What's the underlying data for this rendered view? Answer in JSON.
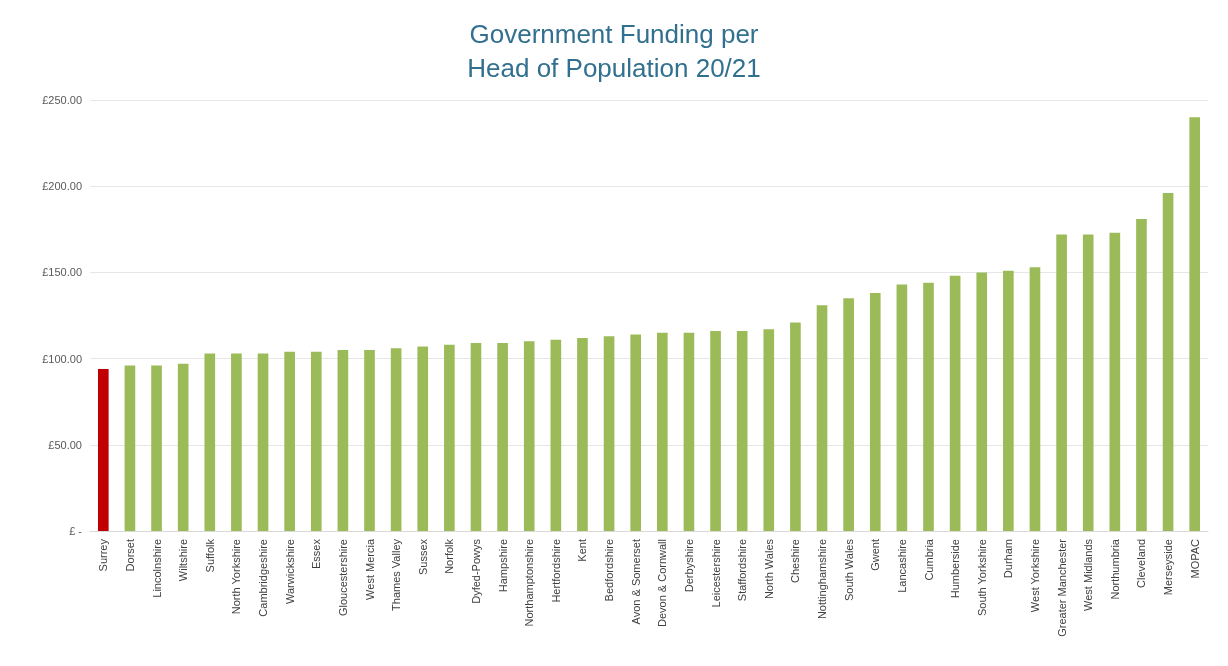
{
  "chart_data": {
    "type": "bar",
    "title": "Government Funding per\nHead of Population 20/21",
    "categories": [
      "Surrey",
      "Dorset",
      "Lincolnshire",
      "Wiltshire",
      "Suffolk",
      "North Yorkshire",
      "Cambridgeshire",
      "Warwickshire",
      "Essex",
      "Gloucestershire",
      "West Mercia",
      "Thames Valley",
      "Sussex",
      "Norfolk",
      "Dyfed-Powys",
      "Hampshire",
      "Northamptonshire",
      "Hertfordshire",
      "Kent",
      "Bedfordshire",
      "Avon & Somerset",
      "Devon & Cornwall",
      "Derbyshire",
      "Leicestershire",
      "Staffordshire",
      "North Wales",
      "Cheshire",
      "Nottinghamshire",
      "South Wales",
      "Gwent",
      "Lancashire",
      "Cumbria",
      "Humberside",
      "South Yorkshire",
      "Durham",
      "West Yorkshire",
      "Greater Manchester",
      "West Midlands",
      "Northumbria",
      "Cleveland",
      "Merseyside",
      "MOPAC"
    ],
    "values": [
      94,
      96,
      96,
      97,
      103,
      103,
      103,
      104,
      104,
      105,
      105,
      106,
      107,
      108,
      109,
      109,
      110,
      111,
      112,
      113,
      114,
      115,
      115,
      116,
      116,
      117,
      121,
      131,
      135,
      138,
      143,
      144,
      148,
      150,
      151,
      153,
      172,
      172,
      173,
      181,
      196,
      240
    ],
    "colors": [
      "#c00000",
      "#9bbb59",
      "#9bbb59",
      "#9bbb59",
      "#9bbb59",
      "#9bbb59",
      "#9bbb59",
      "#9bbb59",
      "#9bbb59",
      "#9bbb59",
      "#9bbb59",
      "#9bbb59",
      "#9bbb59",
      "#9bbb59",
      "#9bbb59",
      "#9bbb59",
      "#9bbb59",
      "#9bbb59",
      "#9bbb59",
      "#9bbb59",
      "#9bbb59",
      "#9bbb59",
      "#9bbb59",
      "#9bbb59",
      "#9bbb59",
      "#9bbb59",
      "#9bbb59",
      "#9bbb59",
      "#9bbb59",
      "#9bbb59",
      "#9bbb59",
      "#9bbb59",
      "#9bbb59",
      "#9bbb59",
      "#9bbb59",
      "#9bbb59",
      "#9bbb59",
      "#9bbb59",
      "#9bbb59",
      "#9bbb59",
      "#9bbb59",
      "#9bbb59"
    ],
    "ylim": [
      0,
      250
    ],
    "yticks": [
      {
        "value": 0,
        "label": "£ -"
      },
      {
        "value": 50,
        "label": "£50.00"
      },
      {
        "value": 100,
        "label": "£100.00"
      },
      {
        "value": 150,
        "label": "£150.00"
      },
      {
        "value": 200,
        "label": "£200.00"
      },
      {
        "value": 250,
        "label": "£250.00"
      }
    ],
    "grid": true
  }
}
